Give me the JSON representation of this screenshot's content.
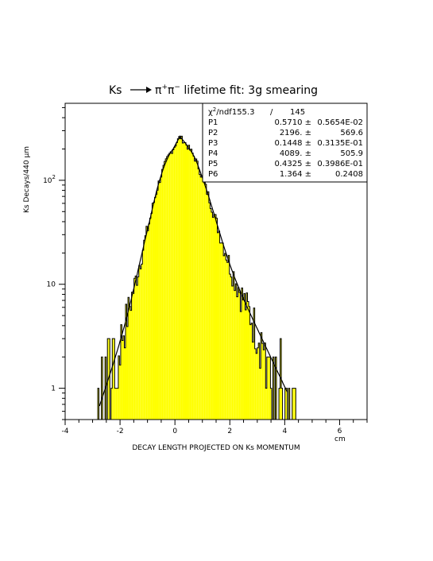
{
  "chart_data": {
    "type": "bar",
    "title_main": "Ks",
    "title_decay": "π",
    "title_plus": "+",
    "title_pi2": "π",
    "title_minus": "−",
    "title_rest": " lifetime fit: 3g smearing",
    "xlabel": "DECAY LENGTH PROJECTED ON Ks MOMENTUM",
    "xunit": "cm",
    "ylabel": "Ks Decays/440 μm",
    "xlim": [
      -4,
      7
    ],
    "ylim": [
      0.5,
      550
    ],
    "yscale": "log",
    "x_ticks": [
      "-4",
      "-2",
      "0",
      "2",
      "4",
      "6"
    ],
    "y_ticks": [
      {
        "value": 1,
        "label": "1"
      },
      {
        "value": 10,
        "label": "10"
      },
      {
        "value": 100,
        "label": "10",
        "sup": "2"
      }
    ],
    "fill_color": "#ffff00",
    "bin_width": 0.044,
    "stats": {
      "chi_label": "χ",
      "chi_sup": "2",
      "chi_rest": "/ndf",
      "chi_value": "155.3",
      "slash": "/",
      "ndf": "145",
      "params": [
        {
          "name": "P1",
          "value": "0.5710 ±",
          "error": "0.5654E-02"
        },
        {
          "name": "P2",
          "value": "2196. ±",
          "error": "569.6"
        },
        {
          "name": "P3",
          "value": "0.1448 ±",
          "error": "0.3135E-01"
        },
        {
          "name": "P4",
          "value": "4089. ±",
          "error": "505.9"
        },
        {
          "name": "P5",
          "value": "0.4325 ±",
          "error": "0.3986E-01"
        },
        {
          "name": "P6",
          "value": "1.364 ±",
          "error": "0.2408"
        }
      ]
    }
  }
}
